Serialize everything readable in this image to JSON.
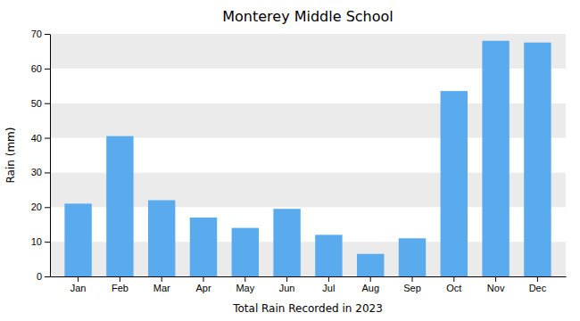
{
  "chart_data": {
    "type": "bar",
    "title": "Monterey Middle School",
    "xlabel": "Total Rain Recorded in 2023",
    "ylabel": "Rain (mm)",
    "categories": [
      "Jan",
      "Feb",
      "Mar",
      "Apr",
      "May",
      "Jun",
      "Jul",
      "Aug",
      "Sep",
      "Oct",
      "Nov",
      "Dec"
    ],
    "values": [
      21,
      40.5,
      22,
      17,
      14,
      19.5,
      12,
      6.5,
      11,
      53.5,
      68,
      67.5
    ],
    "color": "#5aabee",
    "ylim": [
      0,
      70
    ],
    "yticks": [
      0,
      10,
      20,
      30,
      40,
      50,
      60,
      70
    ],
    "grid": true
  }
}
